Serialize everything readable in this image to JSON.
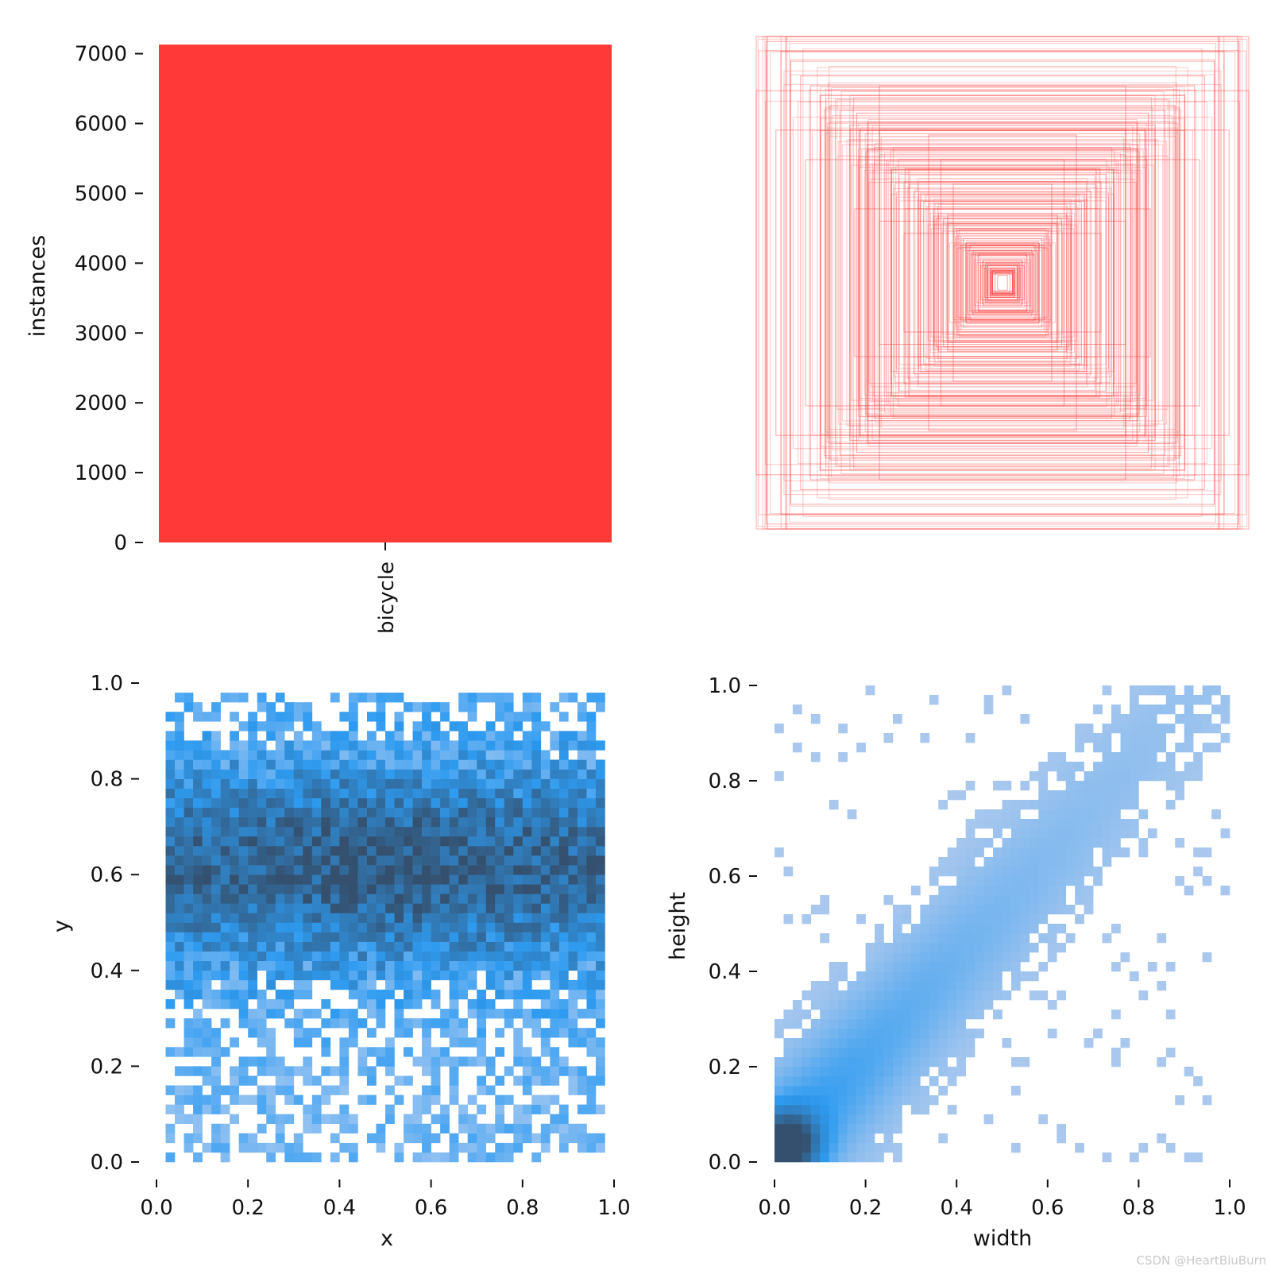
{
  "chart_data": [
    {
      "type": "bar",
      "categories": [
        "bicycle"
      ],
      "values": [
        7130
      ],
      "ylabel": "instances",
      "ylim": [
        0,
        7200
      ],
      "yticks": [
        "0",
        "1000",
        "2000",
        "3000",
        "4000",
        "5000",
        "6000",
        "7000"
      ],
      "bar_color": "#ff3838",
      "grid": false
    },
    {
      "type": "box-overlay",
      "description_of_marks": "centered rectangles, one per label (width, height)",
      "color": "#ff3838",
      "sample_boxes_wh": [
        [
          1.0,
          1.0
        ],
        [
          0.96,
          0.98
        ],
        [
          0.9,
          0.94
        ],
        [
          0.86,
          0.9
        ],
        [
          0.82,
          0.84
        ],
        [
          0.78,
          0.8
        ],
        [
          0.74,
          0.76
        ],
        [
          0.7,
          0.72
        ],
        [
          0.66,
          0.7
        ],
        [
          0.62,
          0.64
        ],
        [
          0.58,
          0.62
        ],
        [
          0.55,
          0.56
        ],
        [
          0.52,
          0.55
        ],
        [
          0.5,
          0.52
        ],
        [
          0.47,
          0.5
        ],
        [
          0.45,
          0.46
        ],
        [
          0.42,
          0.44
        ],
        [
          0.4,
          0.41
        ],
        [
          0.38,
          0.4
        ],
        [
          0.36,
          0.37
        ],
        [
          0.34,
          0.36
        ],
        [
          0.32,
          0.33
        ],
        [
          0.3,
          0.32
        ],
        [
          0.28,
          0.3
        ],
        [
          0.26,
          0.28
        ],
        [
          0.24,
          0.26
        ],
        [
          0.22,
          0.24
        ],
        [
          0.2,
          0.22
        ],
        [
          0.18,
          0.2
        ],
        [
          0.16,
          0.18
        ],
        [
          0.15,
          0.16
        ],
        [
          0.14,
          0.15
        ],
        [
          0.12,
          0.13
        ],
        [
          0.11,
          0.12
        ],
        [
          0.1,
          0.11
        ],
        [
          0.09,
          0.1
        ],
        [
          0.08,
          0.09
        ],
        [
          0.07,
          0.08
        ],
        [
          0.06,
          0.07
        ],
        [
          0.05,
          0.06
        ],
        [
          0.04,
          0.05
        ],
        [
          0.03,
          0.04
        ],
        [
          0.02,
          0.03
        ],
        [
          0.6,
          0.3
        ],
        [
          0.3,
          0.6
        ],
        [
          0.5,
          0.25
        ],
        [
          0.25,
          0.5
        ],
        [
          0.8,
          0.5
        ],
        [
          0.5,
          0.8
        ],
        [
          1.0,
          0.78
        ],
        [
          0.92,
          0.62
        ],
        [
          0.4,
          0.2
        ],
        [
          0.2,
          0.4
        ]
      ]
    },
    {
      "type": "heatmap",
      "xlabel": "x",
      "ylabel": "y",
      "xlim": [
        0.0,
        1.0
      ],
      "ylim": [
        0.0,
        1.0
      ],
      "xticks": [
        "0.0",
        "0.2",
        "0.4",
        "0.6",
        "0.8",
        "1.0"
      ],
      "yticks": [
        "0.0",
        "0.2",
        "0.4",
        "0.6",
        "0.8",
        "1.0"
      ],
      "bins": 50,
      "density": {
        "x_range_filled": [
          0.0,
          1.0
        ],
        "y_range_filled": [
          0.0,
          0.97
        ],
        "peak_x": 0.5,
        "peak_y": 0.62,
        "peak_color": "#34506e",
        "mid_color": "#2e9bf0",
        "low_color": "#8fc0f2"
      }
    },
    {
      "type": "heatmap",
      "xlabel": "width",
      "ylabel": "height",
      "xlim": [
        0.0,
        1.0
      ],
      "ylim": [
        0.0,
        1.0
      ],
      "xticks": [
        "0.0",
        "0.2",
        "0.4",
        "0.6",
        "0.8",
        "1.0"
      ],
      "yticks": [
        "0.0",
        "0.2",
        "0.4",
        "0.6",
        "0.8",
        "1.0"
      ],
      "bins": 50,
      "density": {
        "peak_x": 0.03,
        "peak_y": 0.04,
        "peak_color": "#34506e",
        "mid_color": "#2e9bf0",
        "low_color": "#aac8ee"
      }
    }
  ],
  "watermark": "CSDN @HeartBiuBurn"
}
